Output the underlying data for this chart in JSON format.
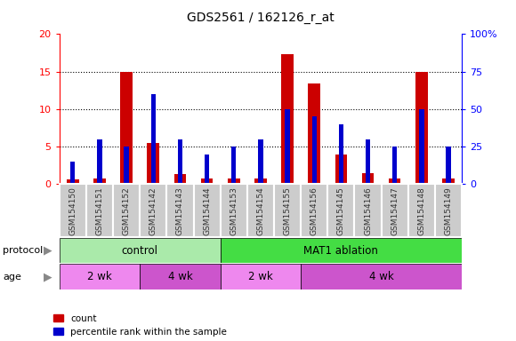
{
  "title": "GDS2561 / 162126_r_at",
  "samples": [
    "GSM154150",
    "GSM154151",
    "GSM154152",
    "GSM154142",
    "GSM154143",
    "GSM154144",
    "GSM154153",
    "GSM154154",
    "GSM154155",
    "GSM154156",
    "GSM154145",
    "GSM154146",
    "GSM154147",
    "GSM154148",
    "GSM154149"
  ],
  "counts": [
    0.6,
    0.7,
    15.0,
    5.5,
    1.4,
    0.7,
    0.7,
    0.7,
    17.3,
    13.4,
    4.0,
    1.5,
    0.7,
    15.0,
    0.7
  ],
  "percentiles": [
    15,
    30,
    25,
    60,
    30,
    20,
    25,
    30,
    50,
    45,
    40,
    30,
    25,
    50,
    25
  ],
  "count_color": "#cc0000",
  "percentile_color": "#0000cc",
  "ylim_left": [
    0,
    20
  ],
  "ylim_right": [
    0,
    100
  ],
  "yticks_left": [
    0,
    5,
    10,
    15,
    20
  ],
  "yticks_right": [
    0,
    25,
    50,
    75,
    100
  ],
  "ytick_labels_right": [
    "0",
    "25",
    "50",
    "75",
    "100%"
  ],
  "protocol_groups": [
    {
      "label": "control",
      "start": 0,
      "end": 6,
      "color": "#aaeaaa"
    },
    {
      "label": "MAT1 ablation",
      "start": 6,
      "end": 15,
      "color": "#44dd44"
    }
  ],
  "age_groups": [
    {
      "label": "2 wk",
      "start": 0,
      "end": 3,
      "color": "#ee88ee"
    },
    {
      "label": "4 wk",
      "start": 3,
      "end": 6,
      "color": "#cc55cc"
    },
    {
      "label": "2 wk",
      "start": 6,
      "end": 9,
      "color": "#ee88ee"
    },
    {
      "label": "4 wk",
      "start": 9,
      "end": 15,
      "color": "#cc55cc"
    }
  ],
  "bar_width": 0.45,
  "percentile_bar_width": 0.18,
  "ticklabel_box_color": "#cccccc",
  "ticklabel_box_edgecolor": "#ffffff",
  "grid_yticks": [
    5,
    10,
    15
  ]
}
